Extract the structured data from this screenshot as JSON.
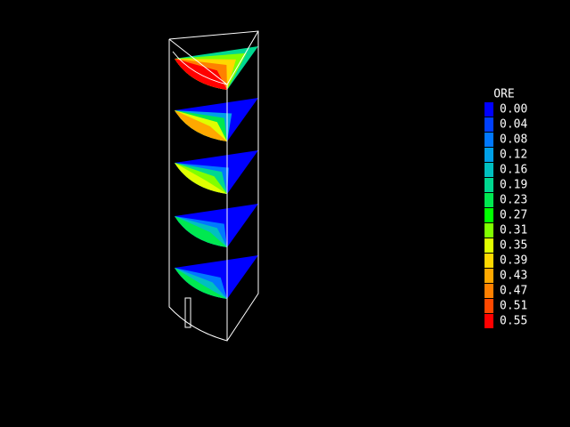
{
  "legend": {
    "title": "ORE",
    "labels": [
      "0.00",
      "0.04",
      "0.08",
      "0.12",
      "0.16",
      "0.19",
      "0.23",
      "0.27",
      "0.31",
      "0.35",
      "0.39",
      "0.43",
      "0.47",
      "0.51",
      "0.55"
    ],
    "colors": [
      "#0000ff",
      "#0040ff",
      "#0078ff",
      "#00a0e8",
      "#00c0c0",
      "#00d890",
      "#00e850",
      "#00ff00",
      "#80ff00",
      "#e0ff00",
      "#ffd800",
      "#ffa800",
      "#ff8000",
      "#ff4800",
      "#ff0000"
    ]
  }
}
